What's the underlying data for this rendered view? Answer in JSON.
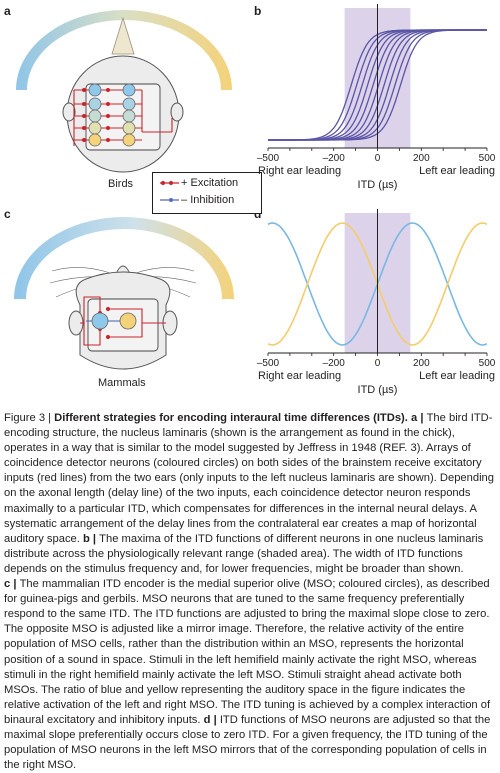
{
  "panels": {
    "a": {
      "letter": "a",
      "caption": "Birds"
    },
    "b": {
      "letter": "b"
    },
    "c": {
      "letter": "c",
      "caption": "Mammals"
    },
    "d": {
      "letter": "d"
    }
  },
  "legend": {
    "excitation": "Excitation",
    "inhibition": "Inhibition"
  },
  "chart_data": [
    {
      "type": "line",
      "panel": "b",
      "xlabel": "ITD (µs)",
      "xlim": [
        -500,
        500
      ],
      "x_ticks": [
        "–500",
        "–200",
        "0",
        "200",
        "500"
      ],
      "left_text": "Right ear leading",
      "right_text": "Left ear leading",
      "shaded_range": [
        -150,
        150
      ],
      "series_count": 10,
      "series_color": "#5a55a5",
      "curve_centers": [
        -120,
        -95,
        -70,
        -45,
        -20,
        5,
        30,
        55,
        80,
        105
      ]
    },
    {
      "type": "line",
      "panel": "d",
      "xlabel": "ITD (µs)",
      "xlim": [
        -500,
        500
      ],
      "x_ticks": [
        "–500",
        "–200",
        "0",
        "200",
        "500"
      ],
      "left_text": "Right ear leading",
      "right_text": "Left ear leading",
      "shaded_range": [
        -150,
        150
      ],
      "series": [
        {
          "color": "#79b8e3",
          "shape": "cosine-falling"
        },
        {
          "color": "#f4cc6a",
          "shape": "cosine-rising"
        }
      ]
    }
  ],
  "caption": {
    "figure_label": "Figure 3 | ",
    "title": "Different strategies for encoding interaural time differences (ITDs).",
    "a_label": " a | ",
    "a_text": "The bird ITD-encoding structure, the nucleus laminaris (shown is the arrangement as found in the chick), operates in a way that is similar to the model suggested by Jeffress in 1948 (REF. 3). Arrays of coincidence detector neurons (coloured circles) on both sides of the brainstem receive excitatory inputs (red lines) from the two ears (only inputs to the left nucleus laminaris are shown). Depending on the axonal length (delay line) of the two inputs, each coincidence detector neuron responds maximally to a particular ITD, which compensates for differences in the internal neural delays. A systematic arrangement of the delay lines from the contralateral ear creates a map of horizontal auditory space.",
    "b_label": " b | ",
    "b_text": "The maxima of the ITD functions of different neurons in one nucleus laminaris distribute across the physiologically relevant range (shaded area). The width of ITD functions depends on the stimulus frequency and, for lower frequencies, might be broader than shown.",
    "c_label": "c | ",
    "c_text": "The mammalian ITD encoder is the medial superior olive (MSO; coloured circles), as described for guinea-pigs and gerbils. MSO neurons that are tuned to the same frequency preferentially respond to the same ITD. The ITD functions are adjusted to bring the maximal slope close to zero. The opposite MSO is adjusted like a mirror image. Therefore, the relative activity of the entire population of MSO cells, rather than the distribution within an MSO, represents the horizontal position of a sound in space. Stimuli in the left hemifield mainly activate the right MSO, whereas stimuli in the right hemifield mainly activate the left MSO. Stimuli straight ahead activate both MSOs. The ratio of blue and yellow representing the auditory space in the figure indicates the relative activation of the left and right MSO. The ITD tuning is achieved by a complex interaction of binaural excitatory and inhibitory inputs.",
    "d_label": " d | ",
    "d_text": "ITD functions of MSO neurons are adjusted so that the maximal slope preferentially occurs close to zero ITD. For a given frequency, the ITD tuning of the population of MSO neurons in the left MSO mirrors that of the corresponding population of cells in the right MSO."
  }
}
